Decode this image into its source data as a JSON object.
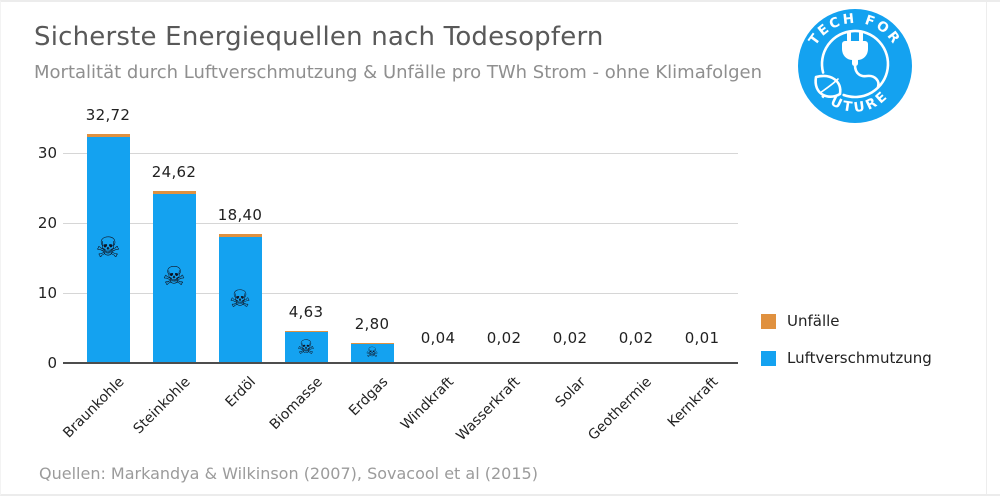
{
  "header": {
    "title": "Sicherste Energiequellen nach Todesopfern",
    "subtitle": "Mortalität durch Luftverschmutzung & Unfälle pro TWh Strom - ohne Klimafolgen"
  },
  "logo": {
    "top_text": "TECH FOR",
    "bottom_text": "FUTURE",
    "color": "#14a2f0"
  },
  "legend": {
    "items": [
      {
        "label": "Unfälle",
        "color": "#e0913f"
      },
      {
        "label": "Luftverschmutzung",
        "color": "#14a2f0"
      }
    ]
  },
  "footer": {
    "source": "Quellen: Markandya & Wilkinson (2007), Sovacool et al (2015)"
  },
  "chart_data": {
    "type": "bar",
    "stacked": true,
    "title": "Sicherste Energiequellen nach Todesopfern",
    "subtitle": "Mortalität durch Luftverschmutzung & Unfälle pro TWh Strom - ohne Klimafolgen",
    "categories": [
      "Braunkohle",
      "Steinkohle",
      "Erdöl",
      "Biomasse",
      "Erdgas",
      "Windkraft",
      "Wasserkraft",
      "Solar",
      "Geothermie",
      "Kernkraft"
    ],
    "values": [
      32.72,
      24.62,
      18.4,
      4.63,
      2.8,
      0.04,
      0.02,
      0.02,
      0.02,
      0.01
    ],
    "value_labels": [
      "32,72",
      "24,62",
      "18,40",
      "4,63",
      "2,80",
      "0,04",
      "0,02",
      "0,02",
      "0,02",
      "0,01"
    ],
    "series": [
      {
        "name": "Luftverschmutzung",
        "color": "#14a2f0"
      },
      {
        "name": "Unfälle",
        "color": "#e0913f"
      }
    ],
    "xlabel": "",
    "ylabel": "",
    "ylim": [
      0,
      35
    ],
    "yticks": [
      0,
      10,
      20,
      30
    ],
    "grid": true,
    "legend_position": "right",
    "marker_icon": "☠",
    "units": "Todesopfer pro TWh"
  }
}
